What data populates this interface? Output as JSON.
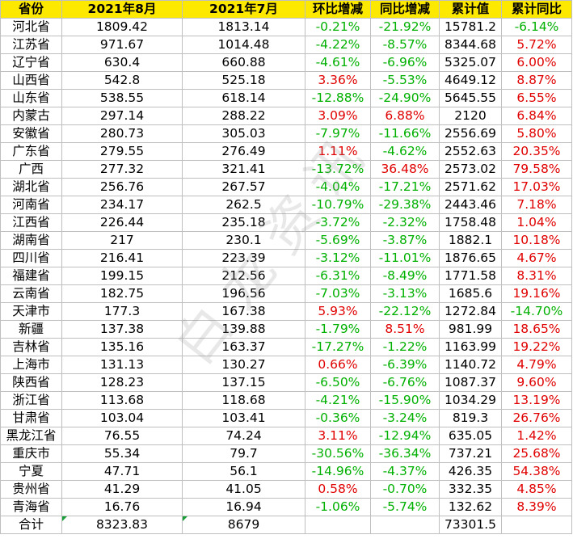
{
  "headers": [
    "省份",
    "2021年8月",
    "2021年7月",
    "环比增减",
    "同比增减",
    "累计值",
    "累计同比"
  ],
  "rows": [
    {
      "prov": "河北省",
      "aug": "1809.42",
      "jul": "1813.14",
      "mom": "-0.21%",
      "yoy": "-21.92%",
      "cum": "15781.2",
      "cumyoy": "-6.14%"
    },
    {
      "prov": "江苏省",
      "aug": "971.67",
      "jul": "1014.48",
      "mom": "-4.22%",
      "yoy": "-8.57%",
      "cum": "8344.68",
      "cumyoy": "5.72%"
    },
    {
      "prov": "辽宁省",
      "aug": "630.4",
      "jul": "660.88",
      "mom": "-4.61%",
      "yoy": "-6.96%",
      "cum": "5325.07",
      "cumyoy": "6.00%"
    },
    {
      "prov": "山西省",
      "aug": "542.8",
      "jul": "525.18",
      "mom": "3.36%",
      "yoy": "-5.53%",
      "cum": "4649.12",
      "cumyoy": "8.87%"
    },
    {
      "prov": "山东省",
      "aug": "538.55",
      "jul": "618.14",
      "mom": "-12.88%",
      "yoy": "-24.90%",
      "cum": "5645.55",
      "cumyoy": "6.55%"
    },
    {
      "prov": "内蒙古",
      "aug": "297.14",
      "jul": "288.22",
      "mom": "3.09%",
      "yoy": "6.88%",
      "cum": "2120",
      "cumyoy": "6.84%"
    },
    {
      "prov": "安徽省",
      "aug": "280.73",
      "jul": "305.03",
      "mom": "-7.97%",
      "yoy": "-11.66%",
      "cum": "2556.69",
      "cumyoy": "5.80%"
    },
    {
      "prov": "广东省",
      "aug": "279.55",
      "jul": "276.49",
      "mom": "1.11%",
      "yoy": "-4.62%",
      "cum": "2552.63",
      "cumyoy": "20.35%"
    },
    {
      "prov": "广西",
      "aug": "277.32",
      "jul": "321.41",
      "mom": "-13.72%",
      "yoy": "36.48%",
      "cum": "2573.02",
      "cumyoy": "79.58%"
    },
    {
      "prov": "湖北省",
      "aug": "256.76",
      "jul": "267.57",
      "mom": "-4.04%",
      "yoy": "-17.21%",
      "cum": "2571.62",
      "cumyoy": "17.03%"
    },
    {
      "prov": "河南省",
      "aug": "234.17",
      "jul": "262.5",
      "mom": "-10.79%",
      "yoy": "-29.38%",
      "cum": "2443.46",
      "cumyoy": "7.18%"
    },
    {
      "prov": "江西省",
      "aug": "226.44",
      "jul": "235.18",
      "mom": "-3.72%",
      "yoy": "-2.32%",
      "cum": "1758.48",
      "cumyoy": "1.04%"
    },
    {
      "prov": "湖南省",
      "aug": "217",
      "jul": "230.1",
      "mom": "-5.69%",
      "yoy": "-3.87%",
      "cum": "1882.1",
      "cumyoy": "10.18%"
    },
    {
      "prov": "四川省",
      "aug": "216.41",
      "jul": "223.39",
      "mom": "-3.12%",
      "yoy": "-11.01%",
      "cum": "1876.65",
      "cumyoy": "4.67%"
    },
    {
      "prov": "福建省",
      "aug": "199.15",
      "jul": "212.56",
      "mom": "-6.31%",
      "yoy": "-8.49%",
      "cum": "1771.58",
      "cumyoy": "8.31%"
    },
    {
      "prov": "云南省",
      "aug": "182.75",
      "jul": "196.56",
      "mom": "-7.03%",
      "yoy": "-3.13%",
      "cum": "1685.6",
      "cumyoy": "19.16%"
    },
    {
      "prov": "天津市",
      "aug": "177.3",
      "jul": "167.38",
      "mom": "5.93%",
      "yoy": "-22.12%",
      "cum": "1272.84",
      "cumyoy": "-14.70%"
    },
    {
      "prov": "新疆",
      "aug": "137.38",
      "jul": "139.88",
      "mom": "-1.79%",
      "yoy": "8.51%",
      "cum": "981.99",
      "cumyoy": "18.65%"
    },
    {
      "prov": "吉林省",
      "aug": "135.16",
      "jul": "163.37",
      "mom": "-17.27%",
      "yoy": "-1.22%",
      "cum": "1163.99",
      "cumyoy": "19.22%"
    },
    {
      "prov": "上海市",
      "aug": "131.13",
      "jul": "130.27",
      "mom": "0.66%",
      "yoy": "-6.39%",
      "cum": "1140.72",
      "cumyoy": "4.79%"
    },
    {
      "prov": "陕西省",
      "aug": "128.23",
      "jul": "137.15",
      "mom": "-6.50%",
      "yoy": "-6.76%",
      "cum": "1087.37",
      "cumyoy": "9.60%"
    },
    {
      "prov": "浙江省",
      "aug": "113.68",
      "jul": "118.68",
      "mom": "-4.21%",
      "yoy": "-15.90%",
      "cum": "1034.29",
      "cumyoy": "13.19%"
    },
    {
      "prov": "甘肃省",
      "aug": "103.04",
      "jul": "103.41",
      "mom": "-0.36%",
      "yoy": "-3.24%",
      "cum": "819.3",
      "cumyoy": "26.76%"
    },
    {
      "prov": "黑龙江省",
      "aug": "76.55",
      "jul": "74.24",
      "mom": "3.11%",
      "yoy": "-12.94%",
      "cum": "635.05",
      "cumyoy": "1.42%"
    },
    {
      "prov": "重庆市",
      "aug": "55.34",
      "jul": "79.7",
      "mom": "-30.56%",
      "yoy": "-36.34%",
      "cum": "737.21",
      "cumyoy": "25.68%"
    },
    {
      "prov": "宁夏",
      "aug": "47.71",
      "jul": "56.1",
      "mom": "-14.96%",
      "yoy": "-4.37%",
      "cum": "426.35",
      "cumyoy": "54.38%"
    },
    {
      "prov": "贵州省",
      "aug": "41.29",
      "jul": "41.05",
      "mom": "0.58%",
      "yoy": "-0.70%",
      "cum": "332.35",
      "cumyoy": "4.85%"
    },
    {
      "prov": "青海省",
      "aug": "16.76",
      "jul": "16.94",
      "mom": "-1.06%",
      "yoy": "-5.74%",
      "cum": "132.62",
      "cumyoy": "8.39%"
    }
  ],
  "total": {
    "prov": "合计",
    "aug": "8323.83",
    "jul": "8679",
    "mom": "",
    "yoy": "",
    "cum": "73301.5",
    "cumyoy": ""
  },
  "watermark": "白 龙 资 讯",
  "colors": {
    "header_bg": "#fde800",
    "positive": "#e00000",
    "negative": "#00b000",
    "grid": "#bfbfbf",
    "corner_marker": "#1a9e3a"
  }
}
